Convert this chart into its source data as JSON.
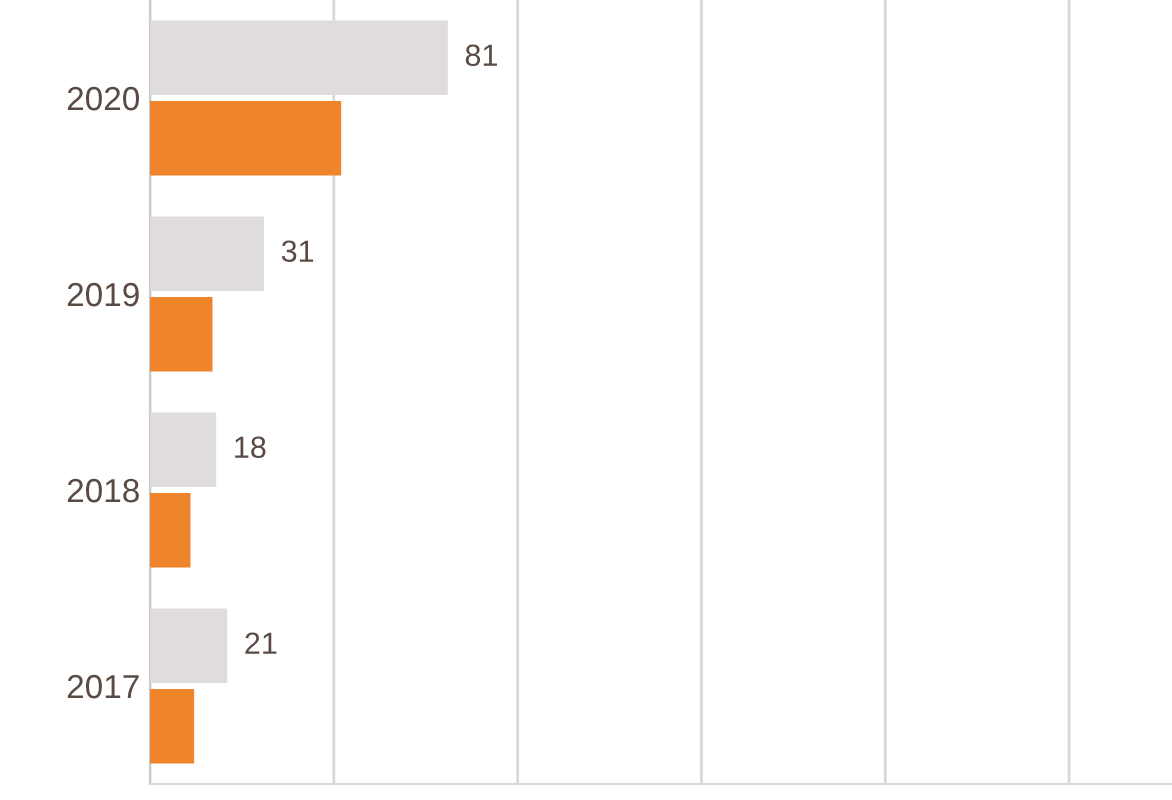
{
  "chart_data": {
    "type": "bar",
    "orientation": "horizontal",
    "categories": [
      "2020",
      "2019",
      "2018",
      "2017"
    ],
    "series": [
      {
        "color": "#e0dcdc",
        "values": [
          81,
          31,
          18,
          21
        ],
        "value_labels": [
          "81",
          "31",
          "18",
          "21"
        ]
      },
      {
        "color": "#ee852b",
        "values": [
          52,
          17,
          11,
          12
        ]
      }
    ],
    "xlim": [
      0,
      278
    ],
    "xticks": [
      {
        "value": 0,
        "label": null
      },
      {
        "value": 50,
        "label": null
      },
      {
        "value": 100,
        "label": null
      },
      {
        "value": 150,
        "label": null
      },
      {
        "value": 200,
        "label": null
      },
      {
        "value": 250,
        "label": null
      }
    ],
    "grid": "x",
    "legend": false
  }
}
